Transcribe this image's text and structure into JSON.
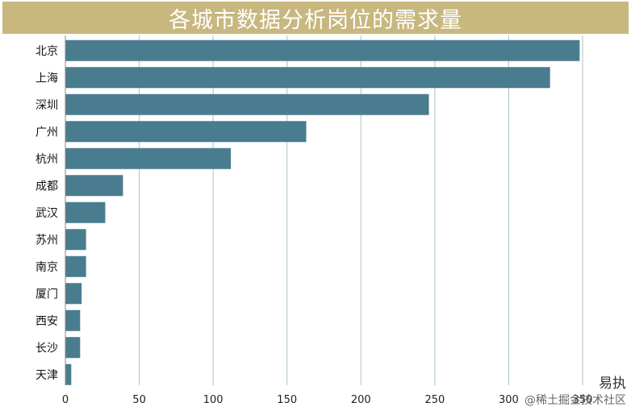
{
  "chart_data": {
    "type": "bar",
    "orientation": "horizontal",
    "title": "各城市数据分析岗位的需求量",
    "categories": [
      "北京",
      "上海",
      "深圳",
      "广州",
      "杭州",
      "成都",
      "武汉",
      "苏州",
      "南京",
      "厦门",
      "西安",
      "长沙",
      "天津"
    ],
    "values": [
      348,
      328,
      246,
      163,
      112,
      39,
      27,
      14,
      14,
      11,
      10,
      10,
      4
    ],
    "xlim": [
      0,
      350
    ],
    "xticks": [
      0,
      50,
      100,
      150,
      200,
      250,
      300,
      350
    ],
    "xlabel": "",
    "ylabel": "",
    "grid": "vertical",
    "bar_color": "#4a7c8f",
    "title_bg_color": "#c8b77f"
  },
  "watermark": {
    "brand": "易执",
    "site": "@稀土掘金技术社区"
  }
}
